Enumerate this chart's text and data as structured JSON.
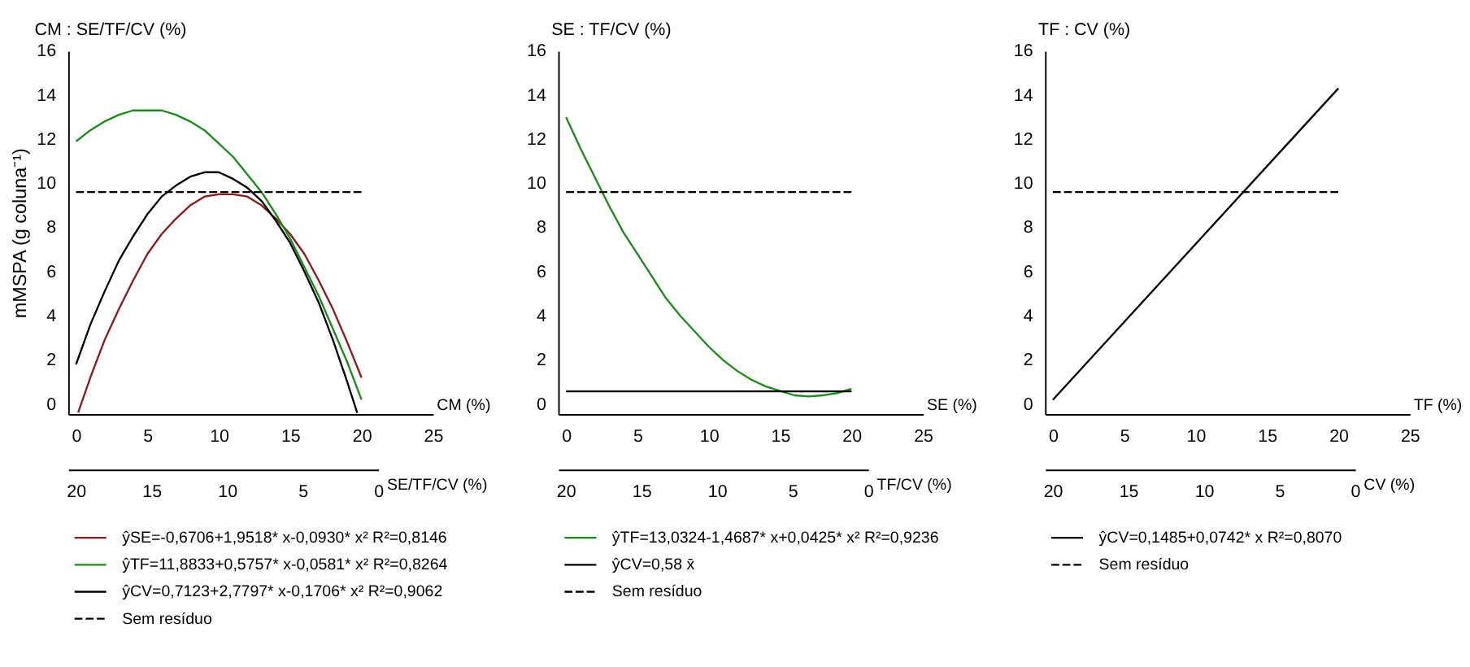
{
  "chart_data": [
    {
      "type": "line",
      "title": "CM : SE/TF/CV (%)",
      "xlabel": "CM (%)",
      "x2label": "SE/TF/CV (%)",
      "ylabel": "mMSPA (g coluna⁻¹)",
      "xlim": [
        -0.55,
        25
      ],
      "xticks": [
        0,
        5,
        10,
        15,
        20,
        25
      ],
      "x2lim": [
        20.5,
        0
      ],
      "x2ticks": [
        20,
        15,
        10,
        5,
        0
      ],
      "ylim": [
        -0.45,
        16
      ],
      "yticks": [
        0,
        2,
        4,
        6,
        8,
        10,
        12,
        14,
        16
      ],
      "legend": "bottom",
      "series": [
        {
          "name": "ŷSE=-0,6706+1,9518* x-0,0930* x² R²=0,8146",
          "color": "#8b1a1a",
          "x": [
            0.15,
            1,
            2,
            3,
            4,
            5,
            6,
            7,
            8,
            9,
            10,
            11,
            12,
            13,
            14,
            15,
            16,
            17,
            18,
            19,
            20
          ],
          "values": [
            -0.38,
            1.2,
            2.9,
            4.3,
            5.6,
            6.8,
            7.7,
            8.4,
            9.0,
            9.4,
            9.5,
            9.5,
            9.4,
            9.0,
            8.4,
            7.7,
            6.8,
            5.6,
            4.3,
            2.8,
            1.2
          ]
        },
        {
          "name": "ŷTF=11,8833+0,5757* x-0,0581* x² R²=0,8264",
          "color": "#1a8c1a",
          "x": [
            0,
            1,
            2,
            3,
            4,
            5,
            6,
            7,
            8,
            9,
            10,
            11,
            12,
            13,
            14,
            15,
            16,
            17,
            18,
            19,
            20
          ],
          "values": [
            11.9,
            12.4,
            12.8,
            13.1,
            13.3,
            13.3,
            13.3,
            13.1,
            12.8,
            12.4,
            11.8,
            11.2,
            10.4,
            9.6,
            8.6,
            7.5,
            6.2,
            4.9,
            3.4,
            1.9,
            0.2
          ]
        },
        {
          "name": "ŷCV=0,7123+2,7797* x-0,1706* x² R²=0,9062",
          "color": "#000000",
          "x": [
            0,
            1,
            2,
            3,
            4,
            5,
            6,
            7,
            8,
            9,
            9.4,
            10,
            11,
            12,
            13,
            14,
            15,
            16,
            17,
            18,
            19,
            19.7
          ],
          "values": [
            1.8,
            3.6,
            5.1,
            6.5,
            7.6,
            8.6,
            9.4,
            9.9,
            10.3,
            10.5,
            10.5,
            10.5,
            10.2,
            9.8,
            9.2,
            8.3,
            7.3,
            6.0,
            4.6,
            2.9,
            1.0,
            -0.4
          ]
        },
        {
          "name": "Sem resíduo",
          "color": "#000000",
          "line_style": "dashed",
          "x": [
            0,
            20
          ],
          "values": [
            9.6,
            9.6
          ]
        }
      ]
    },
    {
      "type": "line",
      "title": "SE : TF/CV (%)",
      "xlabel": "SE (%)",
      "x2label": "TF/CV (%)",
      "xlim": [
        -0.55,
        25
      ],
      "xticks": [
        0,
        5,
        10,
        15,
        20,
        25
      ],
      "x2lim": [
        20.5,
        0
      ],
      "x2ticks": [
        20,
        15,
        10,
        5,
        0
      ],
      "ylim": [
        -0.45,
        16
      ],
      "yticks": [
        0,
        2,
        4,
        6,
        8,
        10,
        12,
        14,
        16
      ],
      "legend": "bottom",
      "series": [
        {
          "name": "ŷTF=13,0324-1,4687* x+0,0425* x² R²=0,9236",
          "color": "#1a8c1a",
          "x": [
            0,
            1,
            2,
            3,
            4,
            5,
            6,
            7,
            8,
            9,
            10,
            11,
            12,
            13,
            14,
            15,
            16,
            17,
            18,
            19,
            20
          ],
          "values": [
            13.0,
            11.6,
            10.3,
            9.0,
            7.8,
            6.8,
            5.8,
            4.8,
            4.0,
            3.3,
            2.6,
            2.0,
            1.5,
            1.1,
            0.8,
            0.6,
            0.4,
            0.35,
            0.4,
            0.5,
            0.7
          ]
        },
        {
          "name": "ŷCV=0,58 x̄",
          "color": "#000000",
          "x": [
            0,
            20
          ],
          "values": [
            0.58,
            0.58
          ]
        },
        {
          "name": "Sem resíduo",
          "color": "#000000",
          "line_style": "dashed",
          "x": [
            0,
            20
          ],
          "values": [
            9.6,
            9.6
          ]
        }
      ]
    },
    {
      "type": "line",
      "title": "TF : CV (%)",
      "xlabel": "TF (%)",
      "x2label": "CV (%)",
      "xlim": [
        -0.55,
        25
      ],
      "xticks": [
        0,
        5,
        10,
        15,
        20,
        25
      ],
      "x2lim": [
        20.5,
        0
      ],
      "x2ticks": [
        20,
        15,
        10,
        5,
        0
      ],
      "ylim": [
        -0.45,
        16
      ],
      "yticks": [
        0,
        2,
        4,
        6,
        8,
        10,
        12,
        14,
        16
      ],
      "legend": "bottom",
      "series": [
        {
          "name": "ŷCV=0,1485+0,0742* x R²=0,8070",
          "color": "#000000",
          "x": [
            0,
            20
          ],
          "values": [
            0.2,
            14.3
          ]
        },
        {
          "name": "Sem resíduo",
          "color": "#000000",
          "line_style": "dashed",
          "x": [
            0,
            20
          ],
          "values": [
            9.6,
            9.6
          ]
        }
      ]
    }
  ]
}
